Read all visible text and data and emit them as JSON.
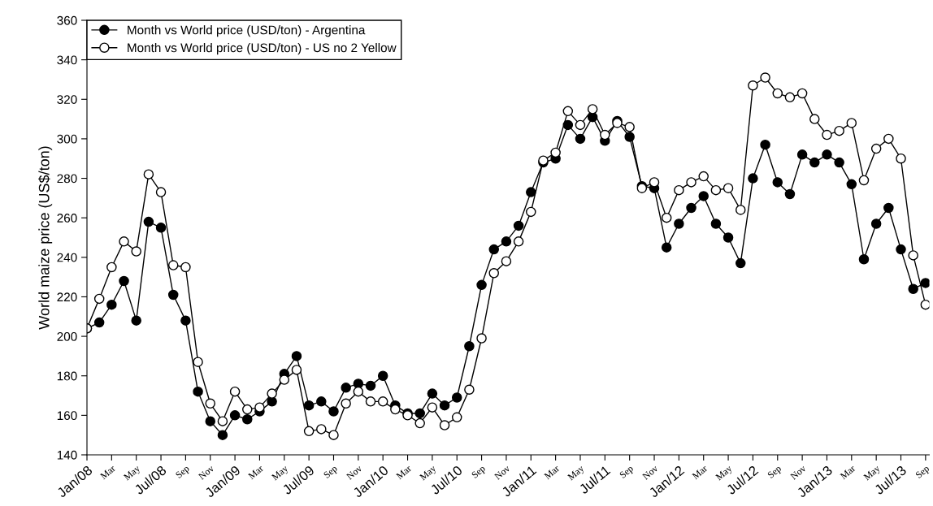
{
  "chart_data": {
    "type": "line",
    "ylabel": "World maize price (US$/ton)",
    "categories": [
      "Jan/08",
      null,
      "Mar",
      null,
      "May",
      null,
      "Jul/08",
      null,
      "Sep",
      null,
      "Nov",
      null,
      "Jan/09",
      null,
      "Mar",
      null,
      "May",
      null,
      "Jul/09",
      null,
      "Sep",
      null,
      "Nov",
      null,
      "Jan/10",
      null,
      "Mar",
      null,
      "May",
      null,
      "Jul/10",
      null,
      "Sep",
      null,
      "Nov",
      null,
      "Jan/11",
      null,
      "Mar",
      null,
      "May",
      null,
      "Jul/11",
      null,
      "Sep",
      null,
      "Nov",
      null,
      "Jan/12",
      null,
      "Mar",
      null,
      "May",
      null,
      "Jul/12",
      null,
      "Sep",
      null,
      "Nov",
      null,
      "Jan/13",
      null,
      "Mar",
      null,
      "May",
      null,
      "Jul/13",
      null,
      "Sep"
    ],
    "series": [
      {
        "name": "Month vs World price (USD/ton) - Argentina",
        "color": "#000000",
        "values": [
          204,
          207,
          216,
          228,
          208,
          258,
          255,
          221,
          208,
          172,
          157,
          150,
          160,
          158,
          162,
          167,
          181,
          190,
          165,
          167,
          162,
          174,
          176,
          175,
          180,
          165,
          161,
          161,
          171,
          165,
          169,
          195,
          226,
          244,
          248,
          256,
          273,
          288,
          290,
          307,
          300,
          311,
          299,
          309,
          301,
          276,
          275,
          245,
          257,
          265,
          271,
          257,
          250,
          237,
          280,
          297,
          278,
          272,
          292,
          288,
          292,
          288,
          277,
          239,
          257,
          265,
          244,
          224,
          227
        ]
      },
      {
        "name": "Month vs World price (USD/ton) - US no 2 Yellow",
        "color": "#ffffff",
        "values": [
          204,
          219,
          235,
          248,
          243,
          282,
          273,
          236,
          235,
          187,
          166,
          157,
          172,
          163,
          164,
          171,
          178,
          183,
          152,
          153,
          150,
          166,
          172,
          167,
          167,
          163,
          160,
          156,
          164,
          155,
          159,
          173,
          199,
          232,
          238,
          248,
          263,
          289,
          293,
          314,
          307,
          315,
          302,
          308,
          306,
          275,
          278,
          260,
          274,
          278,
          281,
          274,
          275,
          264,
          327,
          331,
          323,
          321,
          323,
          310,
          302,
          304,
          308,
          279,
          295,
          300,
          290,
          241,
          216
        ]
      }
    ],
    "ylim": [
      140,
      360
    ],
    "yticks": [
      140,
      160,
      180,
      200,
      220,
      240,
      260,
      280,
      300,
      320,
      340,
      360
    ],
    "grid": false,
    "legend": "top left",
    "marker": "circle",
    "line_style": "solid"
  }
}
